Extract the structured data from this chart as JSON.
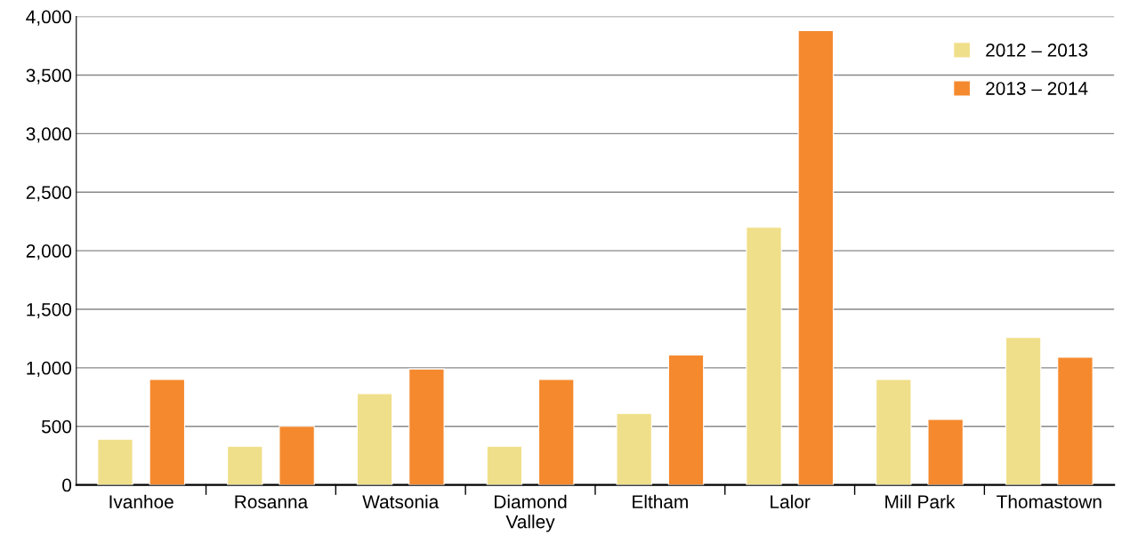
{
  "chart_data": {
    "type": "bar",
    "categories": [
      "Ivanhoe",
      "Rosanna",
      "Watsonia",
      "Diamond\nValley",
      "Eltham",
      "Lalor",
      "Mill Park",
      "Thomastown"
    ],
    "series": [
      {
        "name": "2012 – 2013",
        "color": "#f0df8a",
        "values": [
          390,
          330,
          780,
          330,
          610,
          2200,
          900,
          1260
        ]
      },
      {
        "name": "2013 – 2014",
        "color": "#f5892e",
        "values": [
          900,
          500,
          990,
          900,
          1110,
          3880,
          560,
          1090
        ]
      }
    ],
    "ylim": [
      0,
      4000
    ],
    "yticks": [
      0,
      500,
      {
        "value": 1000,
        "label": "1,000"
      },
      {
        "value": 1500,
        "label": "1,500"
      },
      {
        "value": 2000,
        "label": "2,000"
      },
      {
        "value": 2500,
        "label": "2,500"
      },
      {
        "value": 3000,
        "label": "3,000"
      },
      {
        "value": 3500,
        "label": "3,500"
      },
      {
        "value": 4000,
        "label": "4,000"
      }
    ],
    "grid": "y",
    "legend": "top right"
  }
}
